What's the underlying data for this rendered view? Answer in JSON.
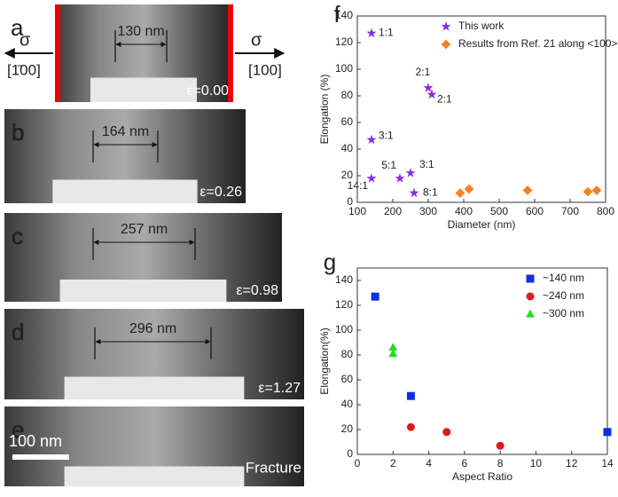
{
  "panels": [
    {
      "letter": "a",
      "length": "130 nm",
      "strain": "ε=0.00"
    },
    {
      "letter": "b",
      "length": "164 nm",
      "strain": "ε=0.26"
    },
    {
      "letter": "c",
      "length": "257 nm",
      "strain": "ε=0.98"
    },
    {
      "letter": "d",
      "length": "296 nm",
      "strain": "ε=1.27"
    },
    {
      "letter": "e",
      "scale_bar": "100 nm",
      "note": "Fracture"
    }
  ],
  "stress": {
    "symbol": "σ",
    "left_direction": "[1̄00]",
    "right_direction": "[100]"
  },
  "chart_data": [
    {
      "type": "scatter",
      "panel": "f",
      "x_label": "Diameter (nm)",
      "y_label": "Elongation (%)",
      "xlim": [
        100,
        800
      ],
      "xticks": [
        100,
        200,
        300,
        400,
        500,
        600,
        700,
        800
      ],
      "ylim": [
        0,
        140
      ],
      "yticks": [
        0,
        20,
        40,
        60,
        80,
        100,
        120,
        140
      ],
      "legend": "upper right",
      "series": [
        {
          "name": "This work",
          "color": "#8b2be2",
          "marker": "star",
          "x": [
            140,
            300,
            310,
            140,
            140,
            220,
            250,
            260
          ],
          "values": [
            127,
            86,
            81,
            47,
            18,
            18,
            22,
            7
          ],
          "labels": [
            "1:1",
            "2:1",
            "2:1",
            "3:1",
            "14:1",
            "5:1",
            "3:1",
            "8:1"
          ]
        },
        {
          "name": "Results from Ref. 21 along <100>",
          "color": "#f5821f",
          "marker": "diamond",
          "x": [
            390,
            415,
            580,
            750,
            775
          ],
          "values": [
            7,
            10,
            9,
            8,
            9
          ]
        }
      ]
    },
    {
      "type": "scatter",
      "panel": "g",
      "x_label": "Aspect Ratio",
      "y_label": "Elongation(%)",
      "xlim": [
        0,
        14
      ],
      "xticks": [
        0,
        2,
        4,
        6,
        8,
        10,
        12,
        14
      ],
      "ylim": [
        0,
        150
      ],
      "yticks": [
        0,
        20,
        40,
        60,
        80,
        100,
        120,
        140
      ],
      "legend": "upper right",
      "series": [
        {
          "name": "~140 nm",
          "color": "#1030e0",
          "marker": "square",
          "x": [
            1,
            3,
            14
          ],
          "values": [
            127,
            47,
            18
          ]
        },
        {
          "name": "~240 nm",
          "color": "#e01818",
          "marker": "circle",
          "x": [
            3,
            5,
            8
          ],
          "values": [
            22,
            18,
            7
          ]
        },
        {
          "name": "~300 nm",
          "color": "#22dd22",
          "marker": "triangle",
          "x": [
            2,
            2
          ],
          "values": [
            86,
            81
          ]
        }
      ]
    }
  ]
}
